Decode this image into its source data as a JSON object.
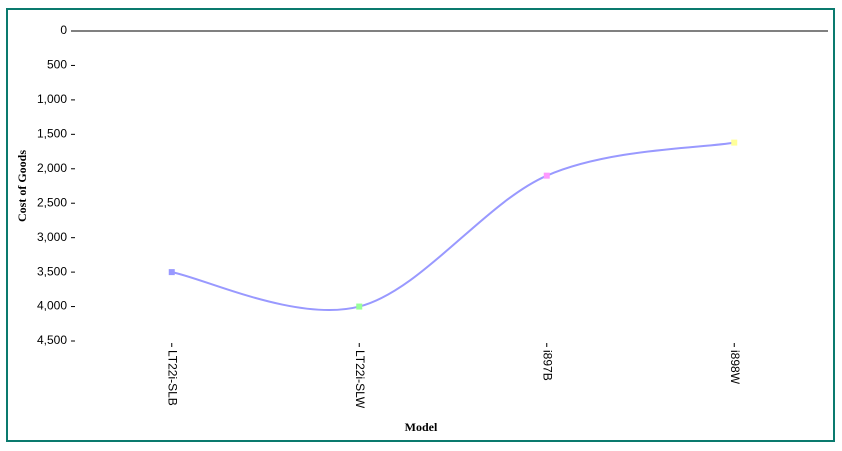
{
  "chart_data": {
    "type": "line",
    "xlabel": "Model",
    "ylabel": "Cost of Goods",
    "categories": [
      "LT22i-SLB",
      "LT22i-SLW",
      "i897B",
      "i898W"
    ],
    "values": [
      3500,
      4000,
      2100,
      1620
    ],
    "color": "#9999ff",
    "point_colors": [
      "#9999ff",
      "#99ff99",
      "#ff99ff",
      "#ffff99"
    ],
    "ylim": [
      0,
      4500
    ],
    "y_inverted": true,
    "yticks": [
      0,
      500,
      {
        "value": 1000,
        "label": "1,000"
      },
      {
        "value": 1500,
        "label": "1,500"
      },
      {
        "value": 2000,
        "label": "2,000"
      },
      {
        "value": 2500,
        "label": "2,500"
      },
      {
        "value": 3000,
        "label": "3,000"
      },
      {
        "value": 3500,
        "label": "3,500"
      },
      {
        "value": 4000,
        "label": "4,000"
      },
      {
        "value": 4500,
        "label": "4,500"
      }
    ]
  }
}
